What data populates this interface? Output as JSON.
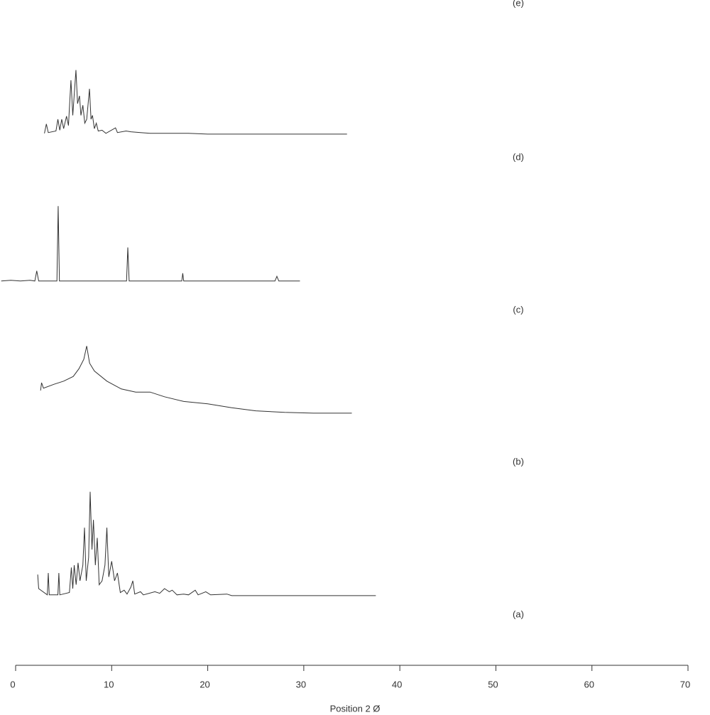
{
  "chart_data": {
    "type": "line",
    "xlabel": "Position 2 Ø",
    "xlim": [
      0,
      70
    ],
    "xticks": [
      0,
      10,
      20,
      30,
      40,
      50,
      60,
      70
    ],
    "ylim": [
      0,
      140
    ],
    "color": "#333333",
    "panel_labels": [
      "(e)",
      "(d)",
      "(c)",
      "(b)",
      "(a)"
    ],
    "series": [
      {
        "x": [
          3.0,
          3.2,
          3.4,
          4.2,
          4.4,
          4.6,
          4.8,
          5.0,
          5.3,
          5.5,
          5.76,
          5.95,
          6.28,
          6.45,
          6.65,
          6.8,
          7.0,
          7.2,
          7.4,
          7.69,
          7.85,
          8.0,
          8.2,
          8.4,
          8.6,
          9.0,
          9.4,
          10.4,
          10.6,
          11.5,
          12.0,
          13.0,
          14.0,
          16,
          18,
          20,
          25,
          30,
          34.5
        ],
        "values": [
          2,
          14,
          3,
          5,
          20,
          6,
          20,
          8,
          24,
          12,
          70,
          25,
          83,
          40,
          50,
          25,
          38,
          15,
          20,
          59,
          20,
          25,
          8,
          15,
          5,
          6,
          2,
          9,
          3,
          5,
          4,
          3,
          2,
          2,
          2,
          1,
          1,
          1,
          1
        ]
      },
      {
        "x": [
          -1.5,
          -0.5,
          0.5,
          1.5,
          2.0,
          2.2,
          2.4,
          4.3,
          4.43,
          4.56,
          8,
          11.55,
          11.68,
          11.82,
          17.3,
          17.4,
          17.5,
          27.0,
          27.2,
          27.4,
          29.6
        ],
        "values": [
          2,
          3,
          2,
          3,
          2,
          15,
          2,
          2,
          98,
          2,
          2,
          2,
          45,
          2,
          2,
          12,
          2,
          2,
          8,
          2,
          2
        ]
      },
      {
        "x": [
          2.6,
          2.7,
          2.9,
          4,
          5,
          6,
          6.6,
          7.1,
          7.4,
          7.7,
          8.2,
          9.5,
          11,
          12.5,
          14,
          15.5,
          17.5,
          20,
          22.5,
          25,
          28,
          31,
          35
        ],
        "values": [
          30,
          40,
          33,
          38,
          42,
          48,
          58,
          70,
          87,
          65,
          55,
          42,
          32,
          28,
          28,
          22,
          16,
          13,
          8,
          4,
          2,
          1,
          1
        ]
      },
      {
        "x": [
          2.3,
          2.4,
          3.3,
          3.4,
          3.5,
          4.4,
          4.5,
          4.6,
          5.6,
          5.8,
          5.95,
          6.1,
          6.3,
          6.5,
          6.7,
          7.0,
          7.17,
          7.35,
          7.6,
          7.76,
          7.95,
          8.1,
          8.3,
          8.5,
          8.7,
          9.0,
          9.3,
          9.5,
          9.7,
          10.0,
          10.3,
          10.6,
          10.9,
          11.3,
          11.6,
          12.0,
          12.2,
          12.4,
          13.0,
          13.3,
          14.5,
          15,
          15.5,
          16,
          16.3,
          16.8,
          17.5,
          18.0,
          18.7,
          19.0,
          19.8,
          20.3,
          22,
          22.5,
          24,
          30,
          37.5
        ],
        "values": [
          28,
          10,
          2,
          30,
          2,
          2,
          30,
          2,
          5,
          37,
          10,
          40,
          15,
          43,
          20,
          40,
          88,
          20,
          50,
          134,
          60,
          98,
          40,
          75,
          15,
          20,
          40,
          88,
          25,
          45,
          20,
          30,
          5,
          8,
          3,
          12,
          20,
          3,
          6,
          2,
          6,
          4,
          10,
          6,
          8,
          2,
          3,
          2,
          8,
          2,
          6,
          2,
          3,
          1,
          1,
          1,
          1
        ]
      }
    ]
  }
}
